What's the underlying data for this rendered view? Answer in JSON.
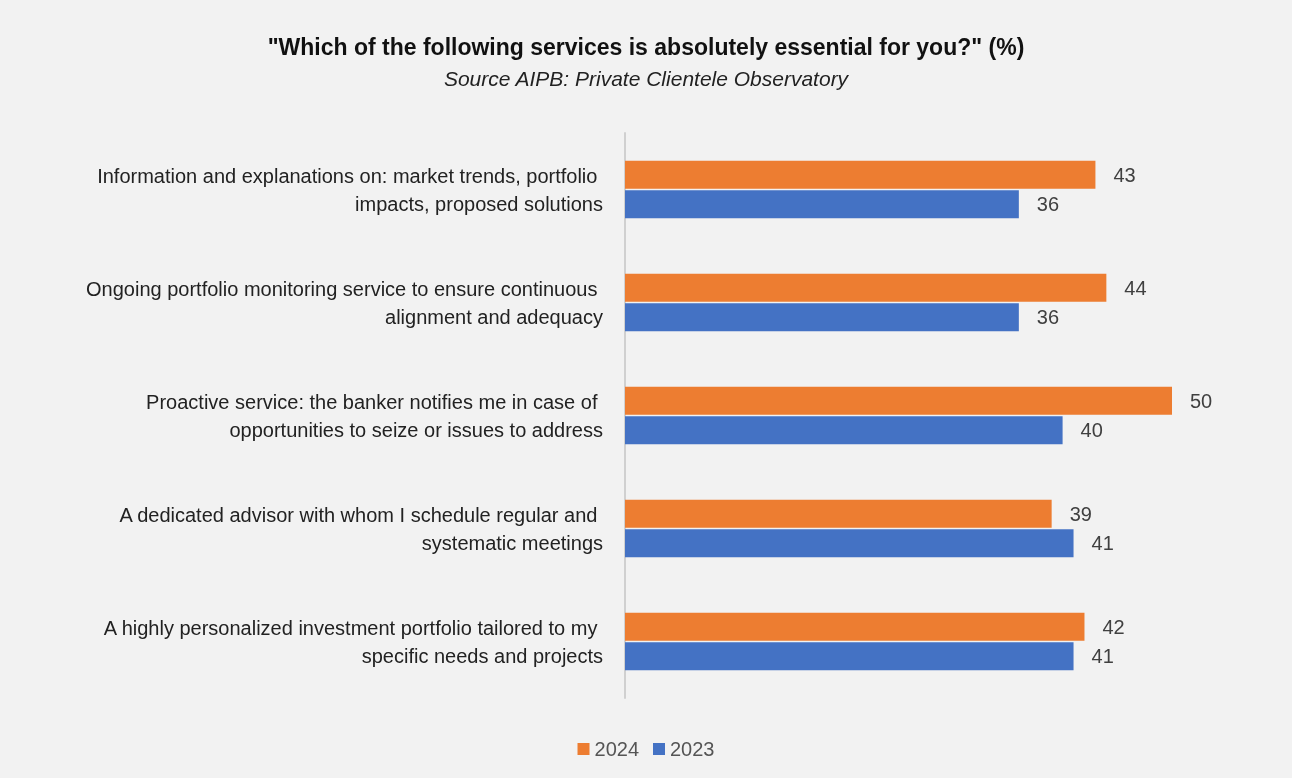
{
  "chart_data": {
    "type": "bar",
    "orientation": "horizontal",
    "title": "\"Which of the following services is absolutely essential for you?\" (%)",
    "subtitle": "Source AIPB: Private Clientele Observatory",
    "categories": [
      "Information and explanations on: market trends, portfolio impacts, proposed solutions",
      "Ongoing portfolio monitoring service to ensure continuous alignment and adequacy",
      "Proactive service: the banker notifies me in case of opportunities to seize or issues to address",
      "A dedicated advisor with whom I schedule regular and systematic meetings",
      "A highly personalized investment portfolio tailored to my specific needs and projects"
    ],
    "series": [
      {
        "name": "2024",
        "color": "#ed7d31",
        "values": [
          43,
          44,
          50,
          39,
          42
        ]
      },
      {
        "name": "2023",
        "color": "#4472c4",
        "values": [
          36,
          36,
          40,
          41,
          41
        ]
      }
    ],
    "data_labels": true,
    "legend": "bottom"
  }
}
